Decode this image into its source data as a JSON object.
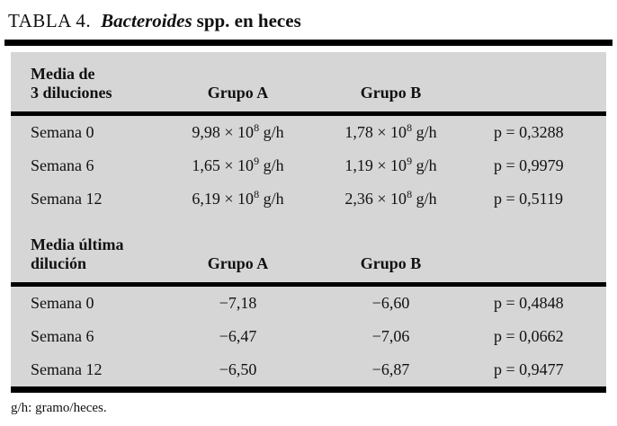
{
  "title": {
    "number": "TABLA 4.",
    "species": "Bacteroides",
    "rest": "spp. en heces"
  },
  "footnote": "g/h: gramo/heces.",
  "section1": {
    "header": {
      "line1": "Media de",
      "line2": "3 diluciones",
      "groupA": "Grupo A",
      "groupB": "Grupo B"
    },
    "rows": [
      {
        "label": "Semana 0",
        "a": {
          "base": "9,98 × 10",
          "exp": "8",
          "unit": " g/h"
        },
        "b": {
          "base": "1,78 × 10",
          "exp": "8",
          "unit": " g/h"
        },
        "p": "p = 0,3288"
      },
      {
        "label": "Semana 6",
        "a": {
          "base": "1,65 × 10",
          "exp": "9",
          "unit": " g/h"
        },
        "b": {
          "base": "1,19 × 10",
          "exp": "9",
          "unit": " g/h"
        },
        "p": "p = 0,9979"
      },
      {
        "label": "Semana 12",
        "a": {
          "base": "6,19 × 10",
          "exp": "8",
          "unit": " g/h"
        },
        "b": {
          "base": "2,36 × 10",
          "exp": "8",
          "unit": " g/h"
        },
        "p": "p = 0,5119"
      }
    ]
  },
  "section2": {
    "header": {
      "line1": "Media última",
      "line2": "dilución",
      "groupA": "Grupo A",
      "groupB": "Grupo B"
    },
    "rows": [
      {
        "label": "Semana 0",
        "a": "−7,18",
        "b": "−6,60",
        "p": "p = 0,4848"
      },
      {
        "label": "Semana 6",
        "a": "−6,47",
        "b": "−7,06",
        "p": "p = 0,0662"
      },
      {
        "label": "Semana 12",
        "a": "−6,50",
        "b": "−6,87",
        "p": "p = 0,9477"
      }
    ]
  }
}
